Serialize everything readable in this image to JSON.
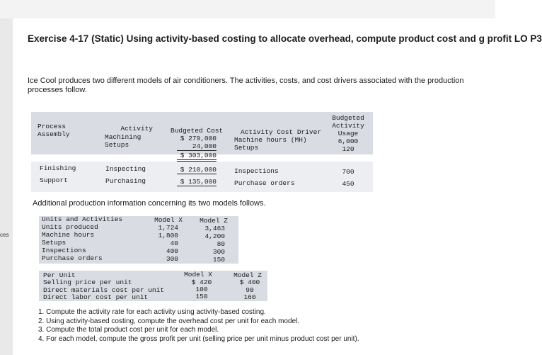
{
  "sidebar_label": "ces",
  "title": "Exercise 4-17 (Static) Using activity-based costing to allocate overhead, compute product cost and g profit LO P3",
  "intro": "Ice Cool produces two different models of air conditioners. The activities, costs, and cost drivers associated with the production processes follow.",
  "table1": {
    "headers": {
      "process": "Process",
      "activity": "Activity",
      "budgeted_cost": "Budgeted Cost",
      "driver": "Activity Cost Driver",
      "budgeted_activity_1": "Budgeted",
      "budgeted_activity_2": "Activity",
      "budgeted_activity_3": "Usage"
    },
    "assembly": {
      "process": "Assembly",
      "activities": [
        "Machining",
        "Setups"
      ],
      "costs": [
        "$ 279,000",
        "24,000"
      ],
      "total": "$ 303,000",
      "drivers": [
        "Machine hours (MH)",
        "Setups"
      ],
      "usage": [
        "6,000",
        "120"
      ]
    },
    "finishing": {
      "process": "Finishing",
      "activity": "Inspecting",
      "cost": "$ 210,000",
      "driver": "Inspections",
      "usage": "700"
    },
    "support": {
      "process": "Support",
      "activity": "Purchasing",
      "cost": "$ 135,000",
      "driver": "Purchase orders",
      "usage": "450"
    }
  },
  "additional_text": "Additional production information concerning its two models follows.",
  "table2": {
    "header": "Units and Activities",
    "model_x": "Model X",
    "model_z": "Model Z",
    "rows": [
      {
        "label": "Units produced",
        "x": "1,724",
        "z": "3,463"
      },
      {
        "label": "Machine hours",
        "x": "1,800",
        "z": "4,200"
      },
      {
        "label": "Setups",
        "x": "40",
        "z": "80"
      },
      {
        "label": "Inspections",
        "x": "400",
        "z": "300"
      },
      {
        "label": "Purchase orders",
        "x": "300",
        "z": "150"
      }
    ]
  },
  "table3": {
    "header": "Per Unit",
    "model_x": "Model X",
    "model_z": "Model Z",
    "rows": [
      {
        "label": "Selling price per unit",
        "x": "$ 420",
        "z": "$ 400"
      },
      {
        "label": "Direct materials cost per unit",
        "x": "100",
        "z": "90"
      },
      {
        "label": "Direct labor cost per unit",
        "x": "150",
        "z": "160"
      }
    ]
  },
  "questions": [
    "1. Compute the activity rate for each activity using activity-based costing.",
    "2. Using activity-based costing, compute the overhead cost per unit for each model.",
    "3. Compute the total product cost per unit for each model.",
    "4. For each model, compute the gross profit per unit (selling price per unit minus product cost per unit)."
  ]
}
